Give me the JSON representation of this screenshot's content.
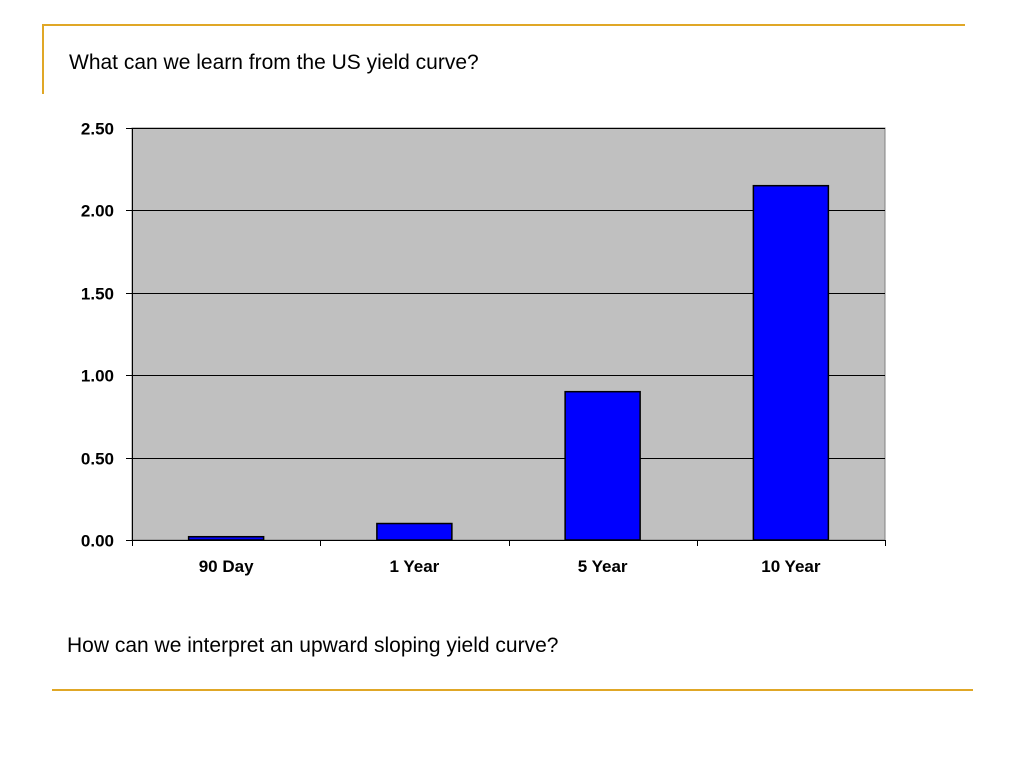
{
  "slide": {
    "title": "What can we learn from the US yield curve?",
    "question": "How can we interpret an upward sloping yield curve?",
    "accent_color": "#e0a726"
  },
  "chart_data": {
    "type": "bar",
    "categories": [
      "90 Day",
      "1 Year",
      "5 Year",
      "10 Year"
    ],
    "values": [
      0.02,
      0.1,
      0.9,
      2.15
    ],
    "yticks": [
      "0.00",
      "0.50",
      "1.00",
      "1.50",
      "2.00",
      "2.50"
    ],
    "ylim": [
      0,
      2.5
    ],
    "grid": true,
    "plot_background": "#c0c0c0",
    "bar_color": "#0000ff"
  }
}
